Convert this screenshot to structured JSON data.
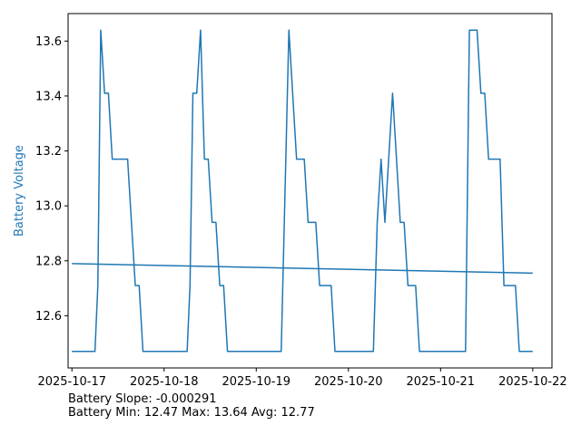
{
  "chart_data": {
    "type": "line",
    "title": "",
    "xlabel": "",
    "ylabel": "Battery Voltage",
    "ylabel_color": "#1f77b4",
    "grid": false,
    "xlim": [
      "2025-10-16T23:00",
      "2025-10-22T05:00"
    ],
    "ylim": [
      12.41,
      13.7
    ],
    "x_ticks": [
      "2025-10-17",
      "2025-10-18",
      "2025-10-19",
      "2025-10-20",
      "2025-10-21",
      "2025-10-22"
    ],
    "y_ticks": [
      12.6,
      12.8,
      13.0,
      13.2,
      13.4,
      13.6
    ],
    "y_tick_labels": [
      "12.6",
      "12.8",
      "13.0",
      "13.2",
      "13.4",
      "13.6"
    ],
    "series": [
      {
        "color": "#1f77b4",
        "x": [
          "2025-10-17T00:00",
          "2025-10-17T06:00",
          "2025-10-17T06:45",
          "2025-10-17T07:30",
          "2025-10-17T08:30",
          "2025-10-17T09:30",
          "2025-10-17T10:30",
          "2025-10-17T14:30",
          "2025-10-17T16:30",
          "2025-10-17T17:30",
          "2025-10-17T18:30",
          "2025-10-17T19:30",
          "2025-10-18T06:00",
          "2025-10-18T06:45",
          "2025-10-18T07:30",
          "2025-10-18T08:30",
          "2025-10-18T09:30",
          "2025-10-18T10:30",
          "2025-10-18T11:30",
          "2025-10-18T12:30",
          "2025-10-18T13:30",
          "2025-10-18T14:30",
          "2025-10-18T15:30",
          "2025-10-18T16:30",
          "2025-10-18T17:30",
          "2025-10-19T06:30",
          "2025-10-19T08:30",
          "2025-10-19T10:30",
          "2025-10-19T12:30",
          "2025-10-19T13:30",
          "2025-10-19T15:30",
          "2025-10-19T16:30",
          "2025-10-19T19:30",
          "2025-10-19T20:30",
          "2025-10-20T06:30",
          "2025-10-20T07:30",
          "2025-10-20T08:30",
          "2025-10-20T09:30",
          "2025-10-20T11:30",
          "2025-10-20T13:30",
          "2025-10-20T14:30",
          "2025-10-20T15:30",
          "2025-10-20T17:30",
          "2025-10-20T18:30",
          "2025-10-21T06:30",
          "2025-10-21T07:30",
          "2025-10-21T09:30",
          "2025-10-21T10:30",
          "2025-10-21T11:30",
          "2025-10-21T12:30",
          "2025-10-21T15:30",
          "2025-10-21T16:30",
          "2025-10-21T19:30",
          "2025-10-21T20:30",
          "2025-10-22T00:00"
        ],
        "y": [
          12.47,
          12.47,
          12.71,
          13.64,
          13.41,
          13.41,
          13.17,
          13.17,
          12.71,
          12.71,
          12.47,
          12.47,
          12.47,
          12.71,
          13.41,
          13.41,
          13.64,
          13.17,
          13.17,
          12.94,
          12.94,
          12.71,
          12.71,
          12.47,
          12.47,
          12.47,
          13.64,
          13.17,
          13.17,
          12.94,
          12.94,
          12.71,
          12.71,
          12.47,
          12.47,
          12.94,
          13.17,
          12.94,
          13.41,
          12.94,
          12.94,
          12.71,
          12.71,
          12.47,
          12.47,
          13.64,
          13.64,
          13.41,
          13.41,
          13.17,
          13.17,
          12.71,
          12.71,
          12.47,
          12.47
        ]
      },
      {
        "color": "#1f77b4",
        "x": [
          "2025-10-17T00:00",
          "2025-10-22T00:00"
        ],
        "y": [
          12.79,
          12.755
        ]
      }
    ]
  },
  "stats": {
    "slope": "Battery Slope: -0.000291",
    "minmaxavg": "Battery Min: 12.47 Max: 13.64 Avg: 12.77"
  }
}
